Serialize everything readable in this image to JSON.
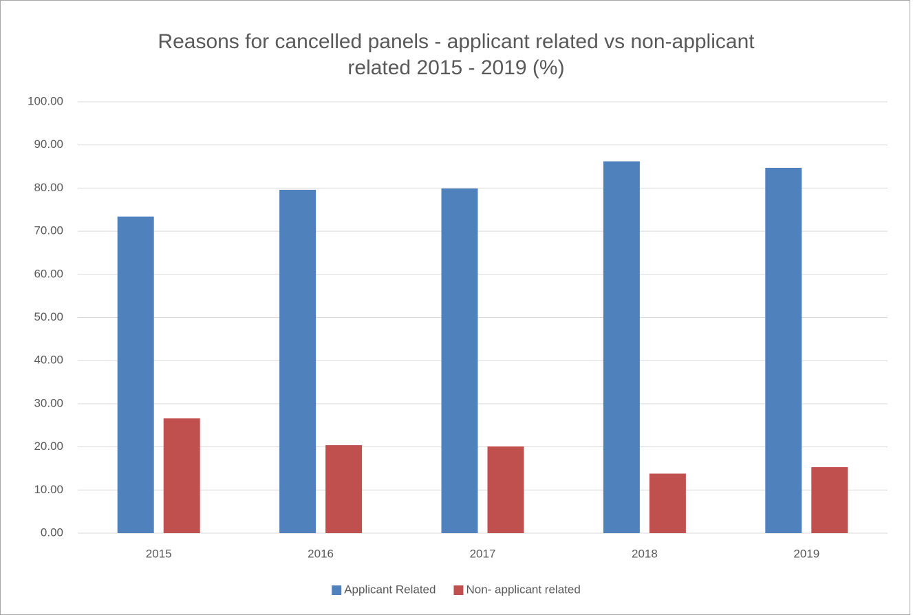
{
  "chart_data": {
    "type": "bar",
    "title": [
      "Reasons for cancelled panels - applicant related vs non-applicant",
      "related 2015 - 2019 (%)"
    ],
    "categories": [
      "2015",
      "2016",
      "2017",
      "2018",
      "2019"
    ],
    "series": [
      {
        "name": "Applicant Related",
        "color": "#4f81bd",
        "values": [
          73.4,
          79.6,
          79.9,
          86.2,
          84.7
        ]
      },
      {
        "name": "Non- applicant related",
        "color": "#c0504d",
        "values": [
          26.6,
          20.4,
          20.1,
          13.8,
          15.3
        ]
      }
    ],
    "ylim": [
      0,
      100
    ],
    "yticks": [
      {
        "value": 0,
        "label": "0.00"
      },
      {
        "value": 10,
        "label": "10.00"
      },
      {
        "value": 20,
        "label": "20.00"
      },
      {
        "value": 30,
        "label": "30.00"
      },
      {
        "value": 40,
        "label": "40.00"
      },
      {
        "value": 50,
        "label": "50.00"
      },
      {
        "value": 60,
        "label": "60.00"
      },
      {
        "value": 70,
        "label": "70.00"
      },
      {
        "value": 80,
        "label": "80.00"
      },
      {
        "value": 90,
        "label": "90.00"
      },
      {
        "value": 100,
        "label": "100.00"
      }
    ],
    "grid": true,
    "legend": "bottom"
  }
}
